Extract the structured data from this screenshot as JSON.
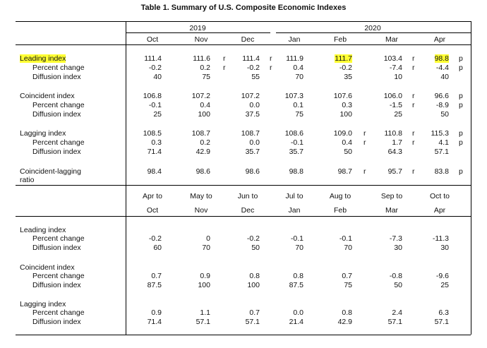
{
  "title": "Table 1. Summary of U.S. Composite Economic Indexes",
  "years": [
    "2019",
    "2020"
  ],
  "months": [
    "Oct",
    "Nov",
    "Dec",
    "Jan",
    "Feb",
    "Mar",
    "Apr"
  ],
  "top": {
    "leading": {
      "label": "Leading index",
      "values": [
        "111.4",
        "111.6",
        "111.4",
        "111.9",
        "111.7",
        "103.4",
        "98.8"
      ],
      "flags": [
        "",
        "r",
        "r",
        "",
        "",
        "r",
        "p"
      ],
      "pc_label": "Percent change",
      "pc": [
        "-0.2",
        "0.2",
        "-0.2",
        "0.4",
        "-0.2",
        "-7.4",
        "-4.4"
      ],
      "pc_flags": [
        "",
        "r",
        "r",
        "",
        "",
        "r",
        "p"
      ],
      "di_label": "Diffusion index",
      "di": [
        "40",
        "75",
        "55",
        "70",
        "35",
        "10",
        "40"
      ]
    },
    "coincident": {
      "label": "Coincident index",
      "values": [
        "106.8",
        "107.2",
        "107.2",
        "107.3",
        "107.6",
        "106.0",
        "96.6"
      ],
      "flags": [
        "",
        "",
        "",
        "",
        "",
        "r",
        "p"
      ],
      "pc_label": "Percent change",
      "pc": [
        "-0.1",
        "0.4",
        "0.0",
        "0.1",
        "0.3",
        "-1.5",
        "-8.9"
      ],
      "pc_flags": [
        "",
        "",
        "",
        "",
        "",
        "r",
        "p"
      ],
      "di_label": "Diffusion index",
      "di": [
        "25",
        "100",
        "37.5",
        "75",
        "100",
        "25",
        "50"
      ]
    },
    "lagging": {
      "label": "Lagging index",
      "values": [
        "108.5",
        "108.7",
        "108.7",
        "108.6",
        "109.0",
        "110.8",
        "115.3"
      ],
      "flags": [
        "",
        "",
        "",
        "",
        "r",
        "r",
        "p"
      ],
      "pc_label": "Percent change",
      "pc": [
        "0.3",
        "0.2",
        "0.0",
        "-0.1",
        "0.4",
        "1.7",
        "4.1"
      ],
      "pc_flags": [
        "",
        "",
        "",
        "",
        "r",
        "r",
        "p"
      ],
      "di_label": "Diffusion index",
      "di": [
        "71.4",
        "42.9",
        "35.7",
        "35.7",
        "50",
        "64.3",
        "57.1"
      ]
    },
    "ratio": {
      "label1": "Coincident-lagging",
      "label2": "ratio",
      "values": [
        "98.4",
        "98.6",
        "98.6",
        "98.8",
        "98.7",
        "95.7",
        "83.8"
      ],
      "flags": [
        "",
        "",
        "",
        "",
        "r",
        "r",
        "p"
      ]
    }
  },
  "periods_from": [
    "Apr to",
    "May to",
    "Jun to",
    "Jul to",
    "Aug to",
    "Sep to",
    "Oct to"
  ],
  "periods_to": [
    "Oct",
    "Nov",
    "Dec",
    "Jan",
    "Feb",
    "Mar",
    "Apr"
  ],
  "bottom": {
    "leading": {
      "label": "Leading index",
      "pc_label": "Percent change",
      "pc": [
        "-0.2",
        "0",
        "-0.2",
        "-0.1",
        "-0.1",
        "-7.3",
        "-11.3"
      ],
      "di_label": "Diffusion index",
      "di": [
        "60",
        "70",
        "50",
        "70",
        "70",
        "30",
        "30"
      ]
    },
    "coincident": {
      "label": "Coincident index",
      "pc_label": "Percent change",
      "pc": [
        "0.7",
        "0.9",
        "0.8",
        "0.8",
        "0.7",
        "-0.8",
        "-9.6"
      ],
      "di_label": "Diffusion index",
      "di": [
        "87.5",
        "100",
        "100",
        "87.5",
        "75",
        "50",
        "25"
      ]
    },
    "lagging": {
      "label": "Lagging index",
      "pc_label": "Percent change",
      "pc": [
        "0.9",
        "1.1",
        "0.7",
        "0.0",
        "0.8",
        "2.4",
        "6.3"
      ],
      "di_label": "Diffusion index",
      "di": [
        "71.4",
        "57.1",
        "57.1",
        "21.4",
        "42.9",
        "57.1",
        "57.1"
      ]
    }
  }
}
